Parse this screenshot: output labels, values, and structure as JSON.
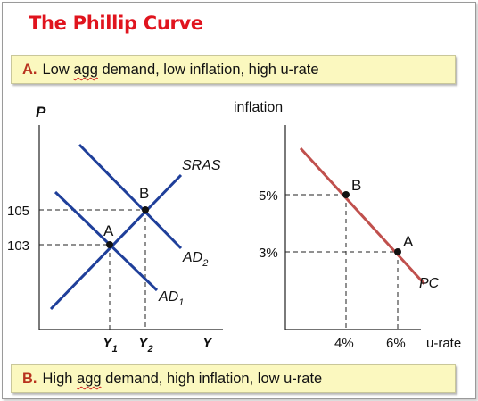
{
  "title": "The Phillip Curve",
  "banner_a": {
    "letter": "A.",
    "pre": "Low",
    "agg": "agg",
    "post": "demand,  low inflation,  high u-rate"
  },
  "banner_b": {
    "letter": "B.",
    "pre": "High",
    "agg": "agg",
    "post": "demand,  high inflation,  low u-rate"
  },
  "colors": {
    "title": "#e0141e",
    "ad_as_lines": "#1f3f9a",
    "phillips_curve": "#c0504d",
    "banner_bg": "#fbf8bf"
  },
  "chart_data": [
    {
      "type": "line",
      "ylabel": "P",
      "xlabel": "Y",
      "y_ticks": [
        "105",
        "103"
      ],
      "x_ticks": [
        {
          "base": "Y",
          "sub": "1"
        },
        {
          "base": "Y",
          "sub": "2"
        }
      ],
      "series": [
        {
          "name": "SRAS",
          "label_base": "SRAS",
          "label_sub": ""
        },
        {
          "name": "AD2",
          "label_base": "AD",
          "label_sub": "2"
        },
        {
          "name": "AD1",
          "label_base": "AD",
          "label_sub": "1"
        }
      ],
      "points": [
        {
          "label": "A",
          "x": "Y1",
          "y": 103
        },
        {
          "label": "B",
          "x": "Y2",
          "y": 105
        }
      ]
    },
    {
      "type": "line",
      "ylabel": "inflation",
      "xlabel": "u-rate",
      "y_ticks": [
        "5%",
        "3%"
      ],
      "x_ticks": [
        "4%",
        "6%"
      ],
      "series": [
        {
          "name": "PC",
          "label": "PC"
        }
      ],
      "points": [
        {
          "label": "B",
          "x": 4,
          "y": 5
        },
        {
          "label": "A",
          "x": 6,
          "y": 3
        }
      ]
    }
  ]
}
